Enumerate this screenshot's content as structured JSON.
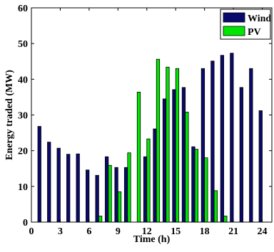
{
  "chart_data": {
    "type": "bar",
    "xlabel": "Time (h)",
    "ylabel": "Energy traded (MW)",
    "xlim": [
      0,
      25
    ],
    "ylim": [
      0,
      60
    ],
    "x_ticks": [
      0,
      3,
      6,
      9,
      12,
      15,
      18,
      21,
      24
    ],
    "y_ticks": [
      0,
      10,
      20,
      30,
      40,
      50,
      60
    ],
    "grid": false,
    "legend_position": "top-right",
    "x": [
      1,
      2,
      3,
      4,
      5,
      6,
      7,
      8,
      9,
      10,
      11,
      12,
      13,
      14,
      15,
      16,
      17,
      18,
      19,
      20,
      21,
      22,
      23,
      24
    ],
    "series": [
      {
        "name": "Wind",
        "color": "#0a0a6e",
        "values": [
          26.8,
          22.4,
          20.7,
          19.0,
          19.1,
          14.6,
          13.1,
          18.3,
          15.3,
          15.3,
          0,
          18.3,
          26.1,
          34.5,
          37.1,
          37.7,
          21.1,
          43.0,
          45.1,
          46.7,
          47.3,
          37.7,
          43.0,
          31.2
        ]
      },
      {
        "name": "PV",
        "color": "#00e600",
        "values": [
          0,
          0,
          0,
          0,
          0,
          0,
          1.7,
          15.9,
          8.5,
          19.4,
          36.4,
          23.3,
          45.6,
          43.4,
          43.0,
          30.8,
          20.4,
          18.0,
          8.8,
          1.7,
          0,
          0,
          0,
          0
        ]
      }
    ]
  }
}
